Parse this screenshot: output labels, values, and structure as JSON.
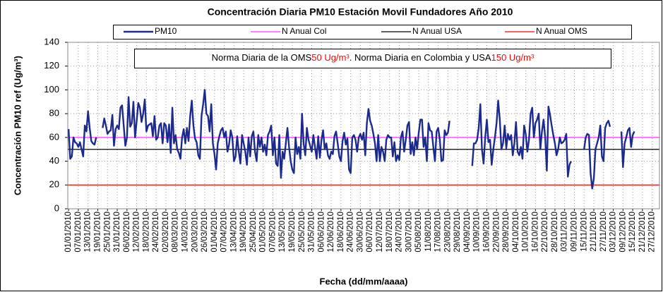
{
  "chart_data": {
    "type": "line",
    "title": "Concentración Diaria PM10 Estación Movil Fundadores Año 2010",
    "y_label": "Concentración PM10 ref (Ug/m³)",
    "x_label": "Fecha (dd/mm/aaaa)",
    "annotation": [
      {
        "text": "Norma Diaria de la OMS",
        "color": "#000000"
      },
      {
        "text": "50 Ug/m³",
        "color": "#ff0000"
      },
      {
        "text": ".   Norma Diaria en Colombia y USA",
        "color": "#000000"
      },
      {
        "text": "150 Ug/m³",
        "color": "#ff0000"
      }
    ],
    "ylim": [
      0,
      140
    ],
    "yticks": [
      0,
      20,
      40,
      60,
      80,
      100,
      120,
      140
    ],
    "grid": true,
    "categories": [
      "01/01/2010",
      null,
      null,
      null,
      null,
      null,
      "07/01/2010",
      null,
      null,
      null,
      null,
      null,
      "13/01/2010",
      null,
      null,
      null,
      null,
      null,
      "19/01/2010",
      null,
      null,
      null,
      null,
      null,
      "25/01/2010",
      null,
      null,
      null,
      null,
      null,
      "31/01/2010",
      null,
      null,
      null,
      null,
      null,
      "06/02/2010",
      null,
      null,
      null,
      null,
      null,
      "12/02/2010",
      null,
      null,
      null,
      null,
      null,
      "18/02/2010",
      null,
      null,
      null,
      null,
      null,
      "24/02/2010",
      null,
      null,
      null,
      null,
      null,
      "02/03/2010",
      null,
      null,
      null,
      null,
      null,
      "08/03/2010",
      null,
      null,
      null,
      null,
      null,
      "14/03/2010",
      null,
      null,
      null,
      null,
      null,
      "20/03/2010",
      null,
      null,
      null,
      null,
      null,
      "26/03/2010",
      null,
      null,
      null,
      null,
      null,
      "01/04/2010",
      null,
      null,
      null,
      null,
      null,
      "07/04/2010",
      null,
      null,
      null,
      null,
      null,
      "13/04/2010",
      null,
      null,
      null,
      null,
      null,
      "19/04/2010",
      null,
      null,
      null,
      null,
      null,
      "25/04/2010",
      null,
      null,
      null,
      null,
      null,
      "01/05/2010",
      null,
      null,
      null,
      null,
      null,
      "07/05/2010",
      null,
      null,
      null,
      null,
      null,
      "13/05/2010",
      null,
      null,
      null,
      null,
      null,
      "19/05/2010",
      null,
      null,
      null,
      null,
      null,
      "25/05/2010",
      null,
      null,
      null,
      null,
      null,
      "31/05/2010",
      null,
      null,
      null,
      null,
      null,
      "06/06/2010",
      null,
      null,
      null,
      null,
      null,
      "12/06/2010",
      null,
      null,
      null,
      null,
      null,
      "18/06/2010",
      null,
      null,
      null,
      null,
      null,
      "24/06/2010",
      null,
      null,
      null,
      null,
      null,
      "30/06/2010",
      null,
      null,
      null,
      null,
      null,
      "06/07/2010",
      null,
      null,
      null,
      null,
      null,
      "12/07/2010",
      null,
      null,
      null,
      null,
      null,
      "18/07/2010",
      null,
      null,
      null,
      null,
      null,
      "24/07/2010",
      null,
      null,
      null,
      null,
      null,
      "30/07/2010",
      null,
      null,
      null,
      null,
      null,
      "05/08/2010",
      null,
      null,
      null,
      null,
      null,
      "11/08/2010",
      null,
      null,
      null,
      null,
      null,
      "17/08/2010",
      null,
      null,
      null,
      null,
      null,
      "23/08/2010",
      null,
      null,
      null,
      null,
      null,
      "29/08/2010",
      null,
      null,
      null,
      null,
      null,
      "04/09/2010",
      null,
      null,
      null,
      null,
      null,
      "10/09/2010",
      null,
      null,
      null,
      null,
      null,
      "16/09/2010",
      null,
      null,
      null,
      null,
      null,
      "22/09/2010",
      null,
      null,
      null,
      null,
      null,
      "28/09/2010",
      null,
      null,
      null,
      null,
      null,
      "04/10/2010",
      null,
      null,
      null,
      null,
      null,
      "10/10/2010",
      null,
      null,
      null,
      null,
      null,
      "16/10/2010",
      null,
      null,
      null,
      null,
      null,
      "22/10/2010",
      null,
      null,
      null,
      null,
      null,
      "28/10/2010",
      null,
      null,
      null,
      null,
      null,
      "03/11/2010",
      null,
      null,
      null,
      null,
      null,
      "09/11/2010",
      null,
      null,
      null,
      null,
      null,
      "15/11/2010",
      null,
      null,
      null,
      null,
      null,
      "21/11/2010",
      null,
      null,
      null,
      null,
      null,
      "27/11/2010",
      null,
      null,
      null,
      null,
      null,
      "03/12/2010",
      null,
      null,
      null,
      null,
      null,
      "09/12/2010",
      null,
      null,
      null,
      null,
      null,
      "15/12/2010",
      null,
      null,
      null,
      null,
      null,
      "21/12/2010",
      null,
      null,
      null,
      null,
      null,
      "27/12/2010",
      null,
      null,
      null,
      null
    ],
    "series": [
      {
        "name": "PM10",
        "color": "#1c2a8e",
        "values": [
          67,
          42,
          44,
          60,
          56,
          55,
          52,
          56,
          50,
          44,
          70,
          65,
          82,
          68,
          57,
          55,
          54,
          60,
          null,
          null,
          null,
          68,
          76,
          70,
          63,
          65,
          66,
          79,
          53,
          67,
          70,
          67,
          85,
          87,
          70,
          53,
          60,
          94,
          69,
          72,
          90,
          60,
          74,
          89,
          85,
          73,
          80,
          92,
          65,
          70,
          71,
          72,
          61,
          78,
          58,
          60,
          70,
          72,
          55,
          72,
          70,
          56,
          71,
          47,
          85,
          55,
          62,
          50,
          47,
          42,
          60,
          67,
          55,
          68,
          57,
          78,
          91,
          70,
          59,
          56,
          45,
          42,
          78,
          88,
          100,
          80,
          78,
          65,
          88,
          55,
          46,
          33,
          55,
          61,
          66,
          68,
          60,
          65,
          48,
          54,
          66,
          60,
          40,
          44,
          61,
          48,
          38,
          62,
          55,
          48,
          37,
          60,
          44,
          61,
          65,
          48,
          40,
          62,
          52,
          60,
          48,
          54,
          45,
          62,
          65,
          70,
          45,
          60,
          38,
          36,
          62,
          26,
          48,
          42,
          55,
          68,
          52,
          40,
          33,
          30,
          60,
          46,
          52,
          42,
          80,
          55,
          45,
          68,
          58,
          53,
          48,
          62,
          52,
          42,
          61,
          43,
          58,
          66,
          50,
          55,
          45,
          42,
          48,
          46,
          61,
          65,
          55,
          44,
          40,
          57,
          64,
          54,
          59,
          33,
          30,
          60,
          62,
          58,
          48,
          60,
          63,
          58,
          64,
          45,
          72,
          84,
          74,
          70,
          63,
          55,
          40,
          62,
          40,
          52,
          48,
          40,
          58,
          62,
          60,
          60,
          44,
          56,
          40,
          45,
          41,
          60,
          65,
          48,
          58,
          70,
          73,
          46,
          56,
          45,
          60,
          50,
          64,
          75,
          75,
          52,
          60,
          40,
          72,
          66,
          65,
          52,
          40,
          65,
          68,
          58,
          40,
          41,
          66,
          62,
          64,
          74,
          null,
          null,
          null,
          null,
          null,
          null,
          null,
          null,
          null,
          null,
          null,
          null,
          null,
          36,
          55,
          55,
          58,
          68,
          88,
          50,
          38,
          60,
          75,
          56,
          58,
          37,
          50,
          60,
          72,
          91,
          75,
          50,
          55,
          70,
          51,
          63,
          58,
          62,
          45,
          55,
          73,
          48,
          45,
          52,
          42,
          70,
          63,
          48,
          58,
          80,
          85,
          60,
          72,
          75,
          80,
          50,
          65,
          75,
          60,
          32,
          86,
          79,
          70,
          62,
          55,
          45,
          50,
          60,
          55,
          56,
          58,
          63,
          27,
          37,
          40,
          null,
          null,
          null,
          null,
          null,
          null,
          null,
          50,
          60,
          63,
          62,
          30,
          17,
          25,
          50,
          55,
          60,
          70,
          44,
          40,
          68,
          72,
          74,
          69,
          null,
          null,
          null,
          null,
          null,
          null,
          65,
          35,
          55,
          60,
          66,
          68,
          52,
          62,
          65,
          null,
          null,
          null,
          null,
          null,
          null,
          null,
          null,
          null,
          null,
          null,
          null,
          null,
          null,
          null
        ]
      }
    ],
    "reference_lines": [
      {
        "name": "N Anual Col",
        "color": "#ff33ff",
        "value": 60
      },
      {
        "name": "N Anual USA",
        "color": "#000000",
        "value": 50
      },
      {
        "name": "N Anual OMS",
        "color": "#ff0000",
        "value": 20
      }
    ]
  }
}
